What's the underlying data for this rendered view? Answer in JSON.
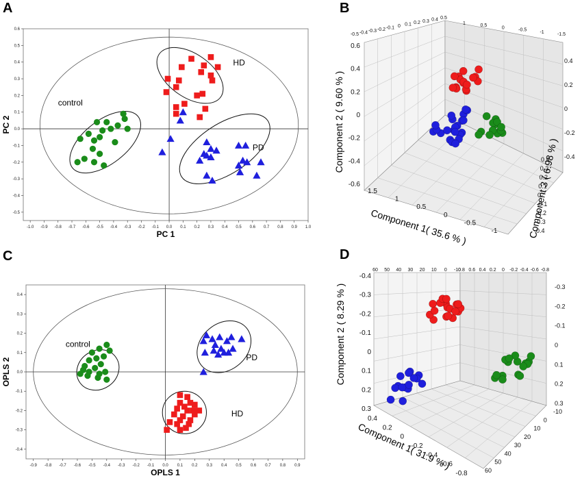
{
  "colors": {
    "control": "#1a8c1a",
    "HD": "#ee1c1c",
    "PD": "#1f1fdd",
    "frame": "#7f7f7f",
    "axis": "#333333"
  },
  "chart_data": [
    {
      "panel": "A",
      "type": "scatter",
      "xlabel": "PC 1",
      "ylabel": "PC 2",
      "xlim": [
        -1.05,
        1.0
      ],
      "ylim": [
        -0.55,
        0.6
      ],
      "xticks": [
        "-1.0",
        "-0.9",
        "-0.8",
        "-0.7",
        "-0.6",
        "-0.5",
        "-0.4",
        "-0.3",
        "-0.2",
        "-0.1",
        "0.0",
        "0.1",
        "0.2",
        "0.3",
        "0.4",
        "0.5",
        "0.6",
        "0.7",
        "0.8",
        "0.9",
        "1.0"
      ],
      "xtick_values": [
        -1.0,
        -0.9,
        -0.8,
        -0.7,
        -0.6,
        -0.5,
        -0.4,
        -0.3,
        -0.2,
        -0.1,
        0.0,
        0.1,
        0.2,
        0.3,
        0.4,
        0.5,
        0.6,
        0.7,
        0.8,
        0.9,
        1.0
      ],
      "yticks": [
        "0.6",
        "0.5",
        "0.4",
        "0.3",
        "0.2",
        "0.1",
        "0.0",
        "-0.1",
        "-0.2",
        "-0.3",
        "-0.4",
        "-0.5"
      ],
      "ytick_values": [
        0.6,
        0.5,
        0.4,
        0.3,
        0.2,
        0.1,
        0.0,
        -0.1,
        -0.2,
        -0.3,
        -0.4,
        -0.5
      ],
      "hotelling": {
        "cx": 0.0,
        "cy": 0.02,
        "rx": 0.93,
        "ry": 0.53
      },
      "groups": [
        {
          "name": "control",
          "marker": "circle",
          "ellipse": {
            "cx": -0.46,
            "cy": -0.08,
            "rx": 0.3,
            "ry": 0.13,
            "angle": -38
          },
          "label": "control",
          "label_at": [
            -0.8,
            0.14
          ],
          "points": [
            [
              -0.33,
              0.09
            ],
            [
              -0.32,
              0.06
            ],
            [
              -0.45,
              0.04
            ],
            [
              -0.52,
              0.04
            ],
            [
              -0.37,
              0.02
            ],
            [
              -0.3,
              0.0
            ],
            [
              -0.42,
              0.0
            ],
            [
              -0.48,
              -0.01
            ],
            [
              -0.58,
              -0.03
            ],
            [
              -0.5,
              -0.05
            ],
            [
              -0.64,
              -0.06
            ],
            [
              -0.54,
              -0.07
            ],
            [
              -0.39,
              -0.08
            ],
            [
              -0.55,
              -0.12
            ],
            [
              -0.5,
              -0.15
            ],
            [
              -0.61,
              -0.18
            ],
            [
              -0.54,
              -0.2
            ],
            [
              -0.47,
              -0.22
            ],
            [
              -0.66,
              -0.2
            ]
          ]
        },
        {
          "name": "HD",
          "marker": "square",
          "ellipse": {
            "cx": 0.15,
            "cy": 0.32,
            "rx": 0.27,
            "ry": 0.13,
            "angle": 35
          },
          "label": "HD",
          "label_at": [
            0.46,
            0.38
          ],
          "points": [
            [
              0.09,
              0.37
            ],
            [
              0.16,
              0.42
            ],
            [
              0.25,
              0.38
            ],
            [
              0.3,
              0.43
            ],
            [
              0.35,
              0.37
            ],
            [
              0.23,
              0.34
            ],
            [
              0.3,
              0.32
            ],
            [
              -0.01,
              0.3
            ],
            [
              0.07,
              0.29
            ],
            [
              0.05,
              0.25
            ],
            [
              -0.02,
              0.22
            ],
            [
              0.2,
              0.2
            ],
            [
              0.24,
              0.21
            ],
            [
              0.11,
              0.15
            ],
            [
              0.05,
              0.13
            ],
            [
              0.26,
              0.12
            ],
            [
              0.05,
              0.09
            ],
            [
              0.22,
              0.07
            ],
            [
              0.31,
              0.29
            ]
          ]
        },
        {
          "name": "PD",
          "marker": "triangle",
          "ellipse": {
            "cx": 0.4,
            "cy": -0.12,
            "rx": 0.37,
            "ry": 0.15,
            "angle": -33
          },
          "label": "PD",
          "label_at": [
            0.6,
            -0.13
          ],
          "points": [
            [
              0.1,
              0.1
            ],
            [
              0.08,
              0.05
            ],
            [
              0.01,
              -0.06
            ],
            [
              0.27,
              -0.08
            ],
            [
              0.3,
              -0.12
            ],
            [
              0.34,
              -0.13
            ],
            [
              0.25,
              -0.15
            ],
            [
              0.27,
              -0.16
            ],
            [
              0.3,
              -0.17
            ],
            [
              0.22,
              -0.19
            ],
            [
              0.5,
              -0.1
            ],
            [
              0.55,
              -0.1
            ],
            [
              0.53,
              -0.19
            ],
            [
              0.56,
              -0.2
            ],
            [
              0.66,
              -0.2
            ],
            [
              0.5,
              -0.22
            ],
            [
              0.27,
              -0.28
            ],
            [
              0.31,
              -0.31
            ],
            [
              0.51,
              -0.26
            ],
            [
              0.63,
              -0.28
            ],
            [
              -0.05,
              -0.14
            ]
          ]
        }
      ]
    },
    {
      "panel": "B",
      "type": "scatter3d",
      "title": "",
      "xlabel": "Component 1( 35.6 % )",
      "ylabel": "Component 2 ( 9.60 % )",
      "zlabel": "Component 3 ( 6.98 % )",
      "top_ticks_a": [
        "-0.5",
        "-0.4",
        "-0.3",
        "-0.2",
        "-0.1",
        "0",
        "0.1",
        "0.2",
        "0.3",
        "0.4",
        "0.5"
      ],
      "top_ticks_b": [
        "1",
        "0.5",
        "0",
        "-0.5",
        "-1",
        "-1.5"
      ],
      "left_ticks": [
        "0.6",
        "0.4",
        "0.2",
        "0",
        "-0.2",
        "-0.4",
        "-0.6"
      ],
      "right_ticks": [
        "0.4",
        "0.2",
        "0",
        "-0.2",
        "-0.4"
      ],
      "bottom_ticks": [
        "1.5",
        "1",
        "0.5",
        "0",
        "-0.5",
        "-1"
      ],
      "depth_ticks": [
        "0.4",
        "0.3",
        "0.2",
        "0.1",
        "0",
        "-0.1",
        "-0.2",
        "-0.3",
        "-0.4"
      ],
      "clusters": [
        {
          "name": "HD",
          "n": 16
        },
        {
          "name": "PD",
          "n": 22
        },
        {
          "name": "control",
          "n": 14
        }
      ]
    },
    {
      "panel": "C",
      "type": "scatter",
      "xlabel": "OPLS 1",
      "ylabel": "OPLS 2",
      "xlim": [
        -0.95,
        0.95
      ],
      "ylim": [
        -0.45,
        0.45
      ],
      "xticks": [
        "-0.9",
        "-0.8",
        "-0.7",
        "-0.6",
        "-0.5",
        "-0.4",
        "-0.3",
        "-0.2",
        "-0.1",
        "0.0",
        "0.1",
        "0.2",
        "0.3",
        "0.4",
        "0.5",
        "0.6",
        "0.7",
        "0.8",
        "0.9"
      ],
      "xtick_values": [
        -0.9,
        -0.8,
        -0.7,
        -0.6,
        -0.5,
        -0.4,
        -0.3,
        -0.2,
        -0.1,
        0.0,
        0.1,
        0.2,
        0.3,
        0.4,
        0.5,
        0.6,
        0.7,
        0.8,
        0.9
      ],
      "yticks": [
        "0.4",
        "0.3",
        "0.2",
        "0.1",
        "0.0",
        "-0.1",
        "-0.2",
        "-0.3",
        "-0.4"
      ],
      "ytick_values": [
        0.4,
        0.3,
        0.2,
        0.1,
        0.0,
        -0.1,
        -0.2,
        -0.3,
        -0.4
      ],
      "hotelling": {
        "cx": 0.0,
        "cy": 0.0,
        "rx": 0.9,
        "ry": 0.43
      },
      "groups": [
        {
          "name": "control",
          "marker": "circle",
          "ellipse": {
            "cx": -0.46,
            "cy": 0.01,
            "rx": 0.15,
            "ry": 0.1,
            "angle": -35
          },
          "label": "control",
          "label_at": [
            -0.68,
            0.13
          ],
          "points": [
            [
              -0.4,
              0.14
            ],
            [
              -0.45,
              0.12
            ],
            [
              -0.38,
              0.11
            ],
            [
              -0.5,
              0.1
            ],
            [
              -0.42,
              0.08
            ],
            [
              -0.47,
              0.07
            ],
            [
              -0.52,
              0.06
            ],
            [
              -0.44,
              0.04
            ],
            [
              -0.55,
              0.03
            ],
            [
              -0.48,
              0.02
            ],
            [
              -0.52,
              0.0
            ],
            [
              -0.45,
              -0.01
            ],
            [
              -0.41,
              0.0
            ],
            [
              -0.58,
              -0.01
            ],
            [
              -0.56,
              0.01
            ],
            [
              -0.46,
              -0.03
            ],
            [
              -0.4,
              -0.04
            ],
            [
              -0.53,
              -0.02
            ]
          ]
        },
        {
          "name": "PD",
          "marker": "triangle",
          "ellipse": {
            "cx": 0.4,
            "cy": 0.13,
            "rx": 0.2,
            "ry": 0.12,
            "angle": -40
          },
          "label": "PD",
          "label_at": [
            0.55,
            0.06
          ],
          "points": [
            [
              0.28,
              0.19
            ],
            [
              0.26,
              0.16
            ],
            [
              0.32,
              0.17
            ],
            [
              0.37,
              0.18
            ],
            [
              0.42,
              0.16
            ],
            [
              0.45,
              0.18
            ],
            [
              0.52,
              0.17
            ],
            [
              0.34,
              0.14
            ],
            [
              0.38,
              0.12
            ],
            [
              0.4,
              0.1
            ],
            [
              0.43,
              0.1
            ],
            [
              0.36,
              0.09
            ],
            [
              0.33,
              0.11
            ],
            [
              0.46,
              0.12
            ],
            [
              0.27,
              0.1
            ],
            [
              0.26,
              0.0
            ]
          ]
        },
        {
          "name": "HD",
          "marker": "square",
          "ellipse": {
            "cx": 0.13,
            "cy": -0.21,
            "rx": 0.15,
            "ry": 0.11,
            "angle": 0
          },
          "label": "HD",
          "label_at": [
            0.45,
            -0.23
          ],
          "points": [
            [
              0.1,
              -0.12
            ],
            [
              0.15,
              -0.13
            ],
            [
              0.1,
              -0.16
            ],
            [
              0.17,
              -0.16
            ],
            [
              0.2,
              -0.17
            ],
            [
              0.13,
              -0.18
            ],
            [
              0.08,
              -0.19
            ],
            [
              0.19,
              -0.2
            ],
            [
              0.15,
              -0.2
            ],
            [
              0.23,
              -0.2
            ],
            [
              0.06,
              -0.22
            ],
            [
              0.12,
              -0.23
            ],
            [
              0.2,
              -0.22
            ],
            [
              0.1,
              -0.25
            ],
            [
              0.17,
              -0.25
            ],
            [
              0.03,
              -0.26
            ],
            [
              0.08,
              -0.27
            ],
            [
              0.16,
              -0.27
            ],
            [
              0.01,
              -0.3
            ],
            [
              0.1,
              -0.3
            ],
            [
              0.14,
              -0.29
            ]
          ]
        }
      ]
    },
    {
      "panel": "D",
      "type": "scatter3d",
      "title": "",
      "xlabel": "Component 1( 31.9 % )",
      "ylabel": "Component 2 ( 8.29 % )",
      "zlabel": "",
      "top_ticks_a": [
        "60",
        "50",
        "40",
        "30",
        "20",
        "10",
        "0",
        "-10"
      ],
      "top_ticks_b": [
        "0.8",
        "0.6",
        "0.4",
        "0.2",
        "0",
        "-0.2",
        "-0.4",
        "-0.6",
        "-0.8"
      ],
      "left_ticks": [
        "-0.4",
        "-0.3",
        "-0.2",
        "-0.1",
        "0",
        "0.1",
        "0.2",
        "0.3"
      ],
      "right_ticks": [
        "-0.3",
        "-0.2",
        "-0.1",
        "0",
        "0.1",
        "0.2",
        "0.3"
      ],
      "bottom_ticks": [
        "0.4",
        "0.2",
        "0",
        "-0.2",
        "-0.4",
        "-0.6",
        "-0.8"
      ],
      "depth_ticks": [
        "-10",
        "0",
        "10",
        "20",
        "30",
        "40",
        "50",
        "60"
      ],
      "clusters": [
        {
          "name": "HD",
          "n": 18
        },
        {
          "name": "PD",
          "n": 15
        },
        {
          "name": "control",
          "n": 16
        }
      ]
    }
  ]
}
